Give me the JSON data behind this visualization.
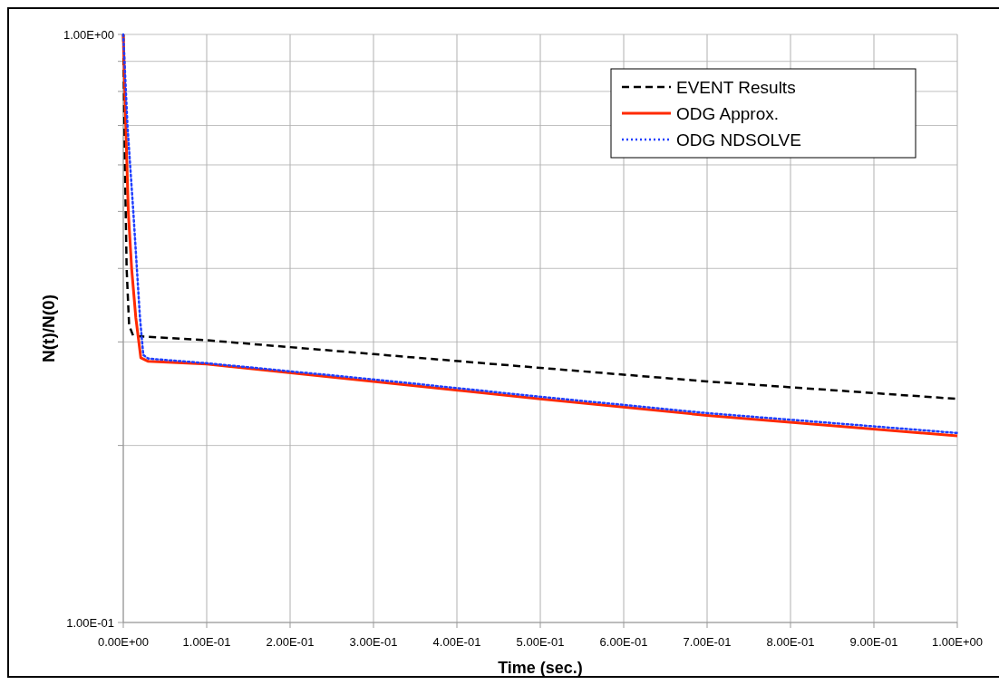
{
  "chart_data": {
    "type": "line",
    "xlabel": "Time (sec.)",
    "ylabel": "N(t)/N(0)",
    "log": "y",
    "grid": true,
    "legend": "top right",
    "xlim": [
      0,
      1
    ],
    "ylim": [
      0.1,
      1
    ],
    "xticks": [
      {
        "value": 0,
        "label": "0.00E+00"
      },
      {
        "value": 0.1,
        "label": "1.00E-01"
      },
      {
        "value": 0.2,
        "label": "2.00E-01"
      },
      {
        "value": 0.3,
        "label": "3.00E-01"
      },
      {
        "value": 0.4,
        "label": "4.00E-01"
      },
      {
        "value": 0.5,
        "label": "5.00E-01"
      },
      {
        "value": 0.6,
        "label": "6.00E-01"
      },
      {
        "value": 0.7,
        "label": "7.00E-01"
      },
      {
        "value": 0.8,
        "label": "8.00E-01"
      },
      {
        "value": 0.9,
        "label": "9.00E-01"
      },
      {
        "value": 1,
        "label": "1.00E+00"
      }
    ],
    "yticks": [
      {
        "value": 0.1,
        "label": "1.00E-01"
      },
      {
        "value": 0.2,
        "label": null
      },
      {
        "value": 0.3,
        "label": null
      },
      {
        "value": 0.4,
        "label": null
      },
      {
        "value": 0.5,
        "label": null
      },
      {
        "value": 0.6,
        "label": null
      },
      {
        "value": 0.7,
        "label": null
      },
      {
        "value": 0.8,
        "label": null
      },
      {
        "value": 0.9,
        "label": null
      },
      {
        "value": 1,
        "label": "1.00E+00"
      }
    ],
    "series": [
      {
        "name": "EVENT Results",
        "color": "#000000",
        "line_style": "dashed",
        "x": [
          0,
          0.002,
          0.004,
          0.007,
          0.012,
          0.1,
          0.3,
          0.5,
          0.7,
          1
        ],
        "values": [
          1,
          0.6,
          0.4,
          0.32,
          0.307,
          0.302,
          0.286,
          0.271,
          0.257,
          0.24
        ]
      },
      {
        "name": "ODG Approx.",
        "color": "#ff2a00",
        "line_style": "solid",
        "x": [
          0,
          0.003,
          0.006,
          0.01,
          0.015,
          0.021,
          0.03,
          0.1,
          0.3,
          0.5,
          0.7,
          1
        ],
        "values": [
          1,
          0.7,
          0.5,
          0.4,
          0.33,
          0.282,
          0.278,
          0.275,
          0.257,
          0.24,
          0.225,
          0.2076
        ]
      },
      {
        "name": "ODG NDSOLVE",
        "color": "#1f3fff",
        "line_style": "dotted",
        "x": [
          0,
          0.005,
          0.012,
          0.02,
          0.024,
          0.03,
          0.1,
          0.3,
          0.5,
          0.7,
          1
        ],
        "values": [
          1,
          0.7,
          0.5,
          0.33,
          0.285,
          0.281,
          0.276,
          0.259,
          0.242,
          0.227,
          0.21
        ]
      }
    ]
  }
}
